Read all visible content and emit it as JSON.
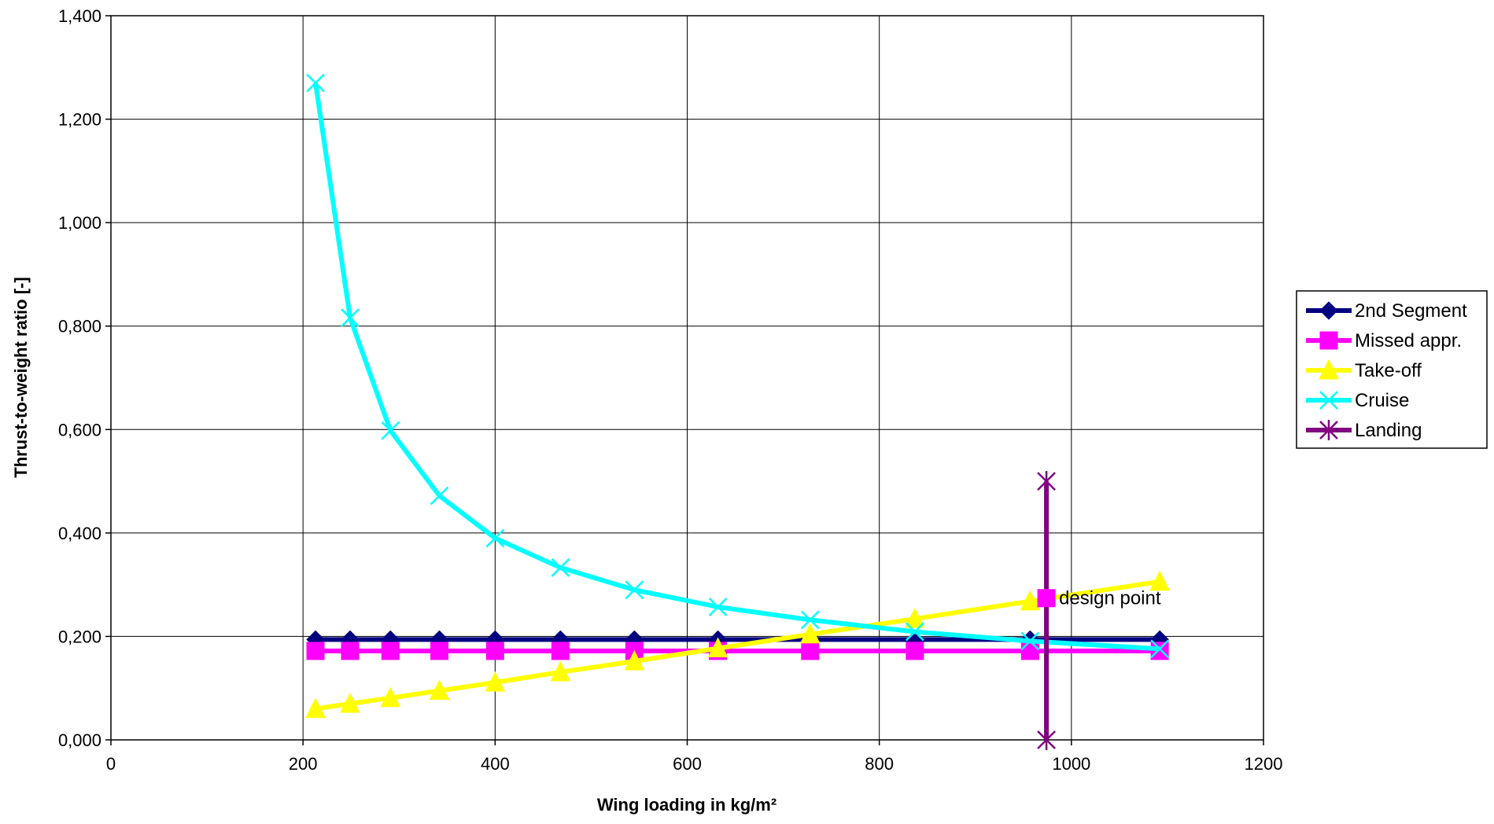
{
  "chart_data": {
    "type": "line",
    "title": "",
    "xlabel": "Wing loading in kg/m²",
    "ylabel": "Thrust-to-weight ratio [-]",
    "xlim": [
      0,
      1200
    ],
    "ylim": [
      0,
      1.4
    ],
    "x_ticks": [
      0,
      200,
      400,
      600,
      800,
      1000,
      1200
    ],
    "x_tick_labels": [
      "0",
      "200",
      "400",
      "600",
      "800",
      "1000",
      "1200"
    ],
    "y_ticks": [
      0,
      0.2,
      0.4,
      0.6,
      0.8,
      1.0,
      1.2,
      1.4
    ],
    "y_tick_labels": [
      "0,000",
      "0,200",
      "0,400",
      "0,600",
      "0,800",
      "1,000",
      "1,200",
      "1,400"
    ],
    "grid": true,
    "legend_position": "right",
    "series": [
      {
        "name": "2nd Segment",
        "color": "#000080",
        "marker": "diamond",
        "points": [
          {
            "x": 213,
            "y": 0.194
          },
          {
            "x": 249,
            "y": 0.194
          },
          {
            "x": 291,
            "y": 0.194
          },
          {
            "x": 342,
            "y": 0.194
          },
          {
            "x": 400,
            "y": 0.194
          },
          {
            "x": 468,
            "y": 0.194
          },
          {
            "x": 545,
            "y": 0.194
          },
          {
            "x": 632,
            "y": 0.194
          },
          {
            "x": 728,
            "y": 0.194
          },
          {
            "x": 837,
            "y": 0.194
          },
          {
            "x": 957,
            "y": 0.194
          },
          {
            "x": 1092,
            "y": 0.194
          }
        ]
      },
      {
        "name": "Missed appr.",
        "color": "#ff00ff",
        "marker": "square",
        "points": [
          {
            "x": 213,
            "y": 0.172
          },
          {
            "x": 249,
            "y": 0.172
          },
          {
            "x": 291,
            "y": 0.172
          },
          {
            "x": 342,
            "y": 0.172
          },
          {
            "x": 400,
            "y": 0.172
          },
          {
            "x": 468,
            "y": 0.172
          },
          {
            "x": 545,
            "y": 0.172
          },
          {
            "x": 632,
            "y": 0.172
          },
          {
            "x": 728,
            "y": 0.172
          },
          {
            "x": 837,
            "y": 0.172
          },
          {
            "x": 957,
            "y": 0.172
          },
          {
            "x": 1092,
            "y": 0.172
          }
        ]
      },
      {
        "name": "Take-off",
        "color": "#ffff00",
        "marker": "triangle",
        "points": [
          {
            "x": 213,
            "y": 0.06
          },
          {
            "x": 249,
            "y": 0.07
          },
          {
            "x": 291,
            "y": 0.081
          },
          {
            "x": 342,
            "y": 0.095
          },
          {
            "x": 400,
            "y": 0.111
          },
          {
            "x": 468,
            "y": 0.131
          },
          {
            "x": 545,
            "y": 0.152
          },
          {
            "x": 632,
            "y": 0.177
          },
          {
            "x": 728,
            "y": 0.204
          },
          {
            "x": 837,
            "y": 0.234
          },
          {
            "x": 957,
            "y": 0.268
          },
          {
            "x": 1092,
            "y": 0.306
          }
        ]
      },
      {
        "name": "Cruise",
        "color": "#00ffff",
        "marker": "x",
        "points": [
          {
            "x": 213,
            "y": 1.27
          },
          {
            "x": 249,
            "y": 0.816
          },
          {
            "x": 291,
            "y": 0.598
          },
          {
            "x": 342,
            "y": 0.472
          },
          {
            "x": 400,
            "y": 0.39
          },
          {
            "x": 468,
            "y": 0.333
          },
          {
            "x": 545,
            "y": 0.29
          },
          {
            "x": 632,
            "y": 0.257
          },
          {
            "x": 728,
            "y": 0.232
          },
          {
            "x": 837,
            "y": 0.209
          },
          {
            "x": 957,
            "y": 0.191
          },
          {
            "x": 1092,
            "y": 0.176
          }
        ]
      },
      {
        "name": "Landing",
        "color": "#800080",
        "marker": "star",
        "points": [
          {
            "x": 974,
            "y": 0.5
          },
          {
            "x": 974,
            "y": 0.0
          }
        ]
      }
    ],
    "annotations": [
      {
        "text": "design point",
        "x": 974,
        "y": 0.274,
        "color": "#ff00ff",
        "marker": "square"
      }
    ]
  }
}
